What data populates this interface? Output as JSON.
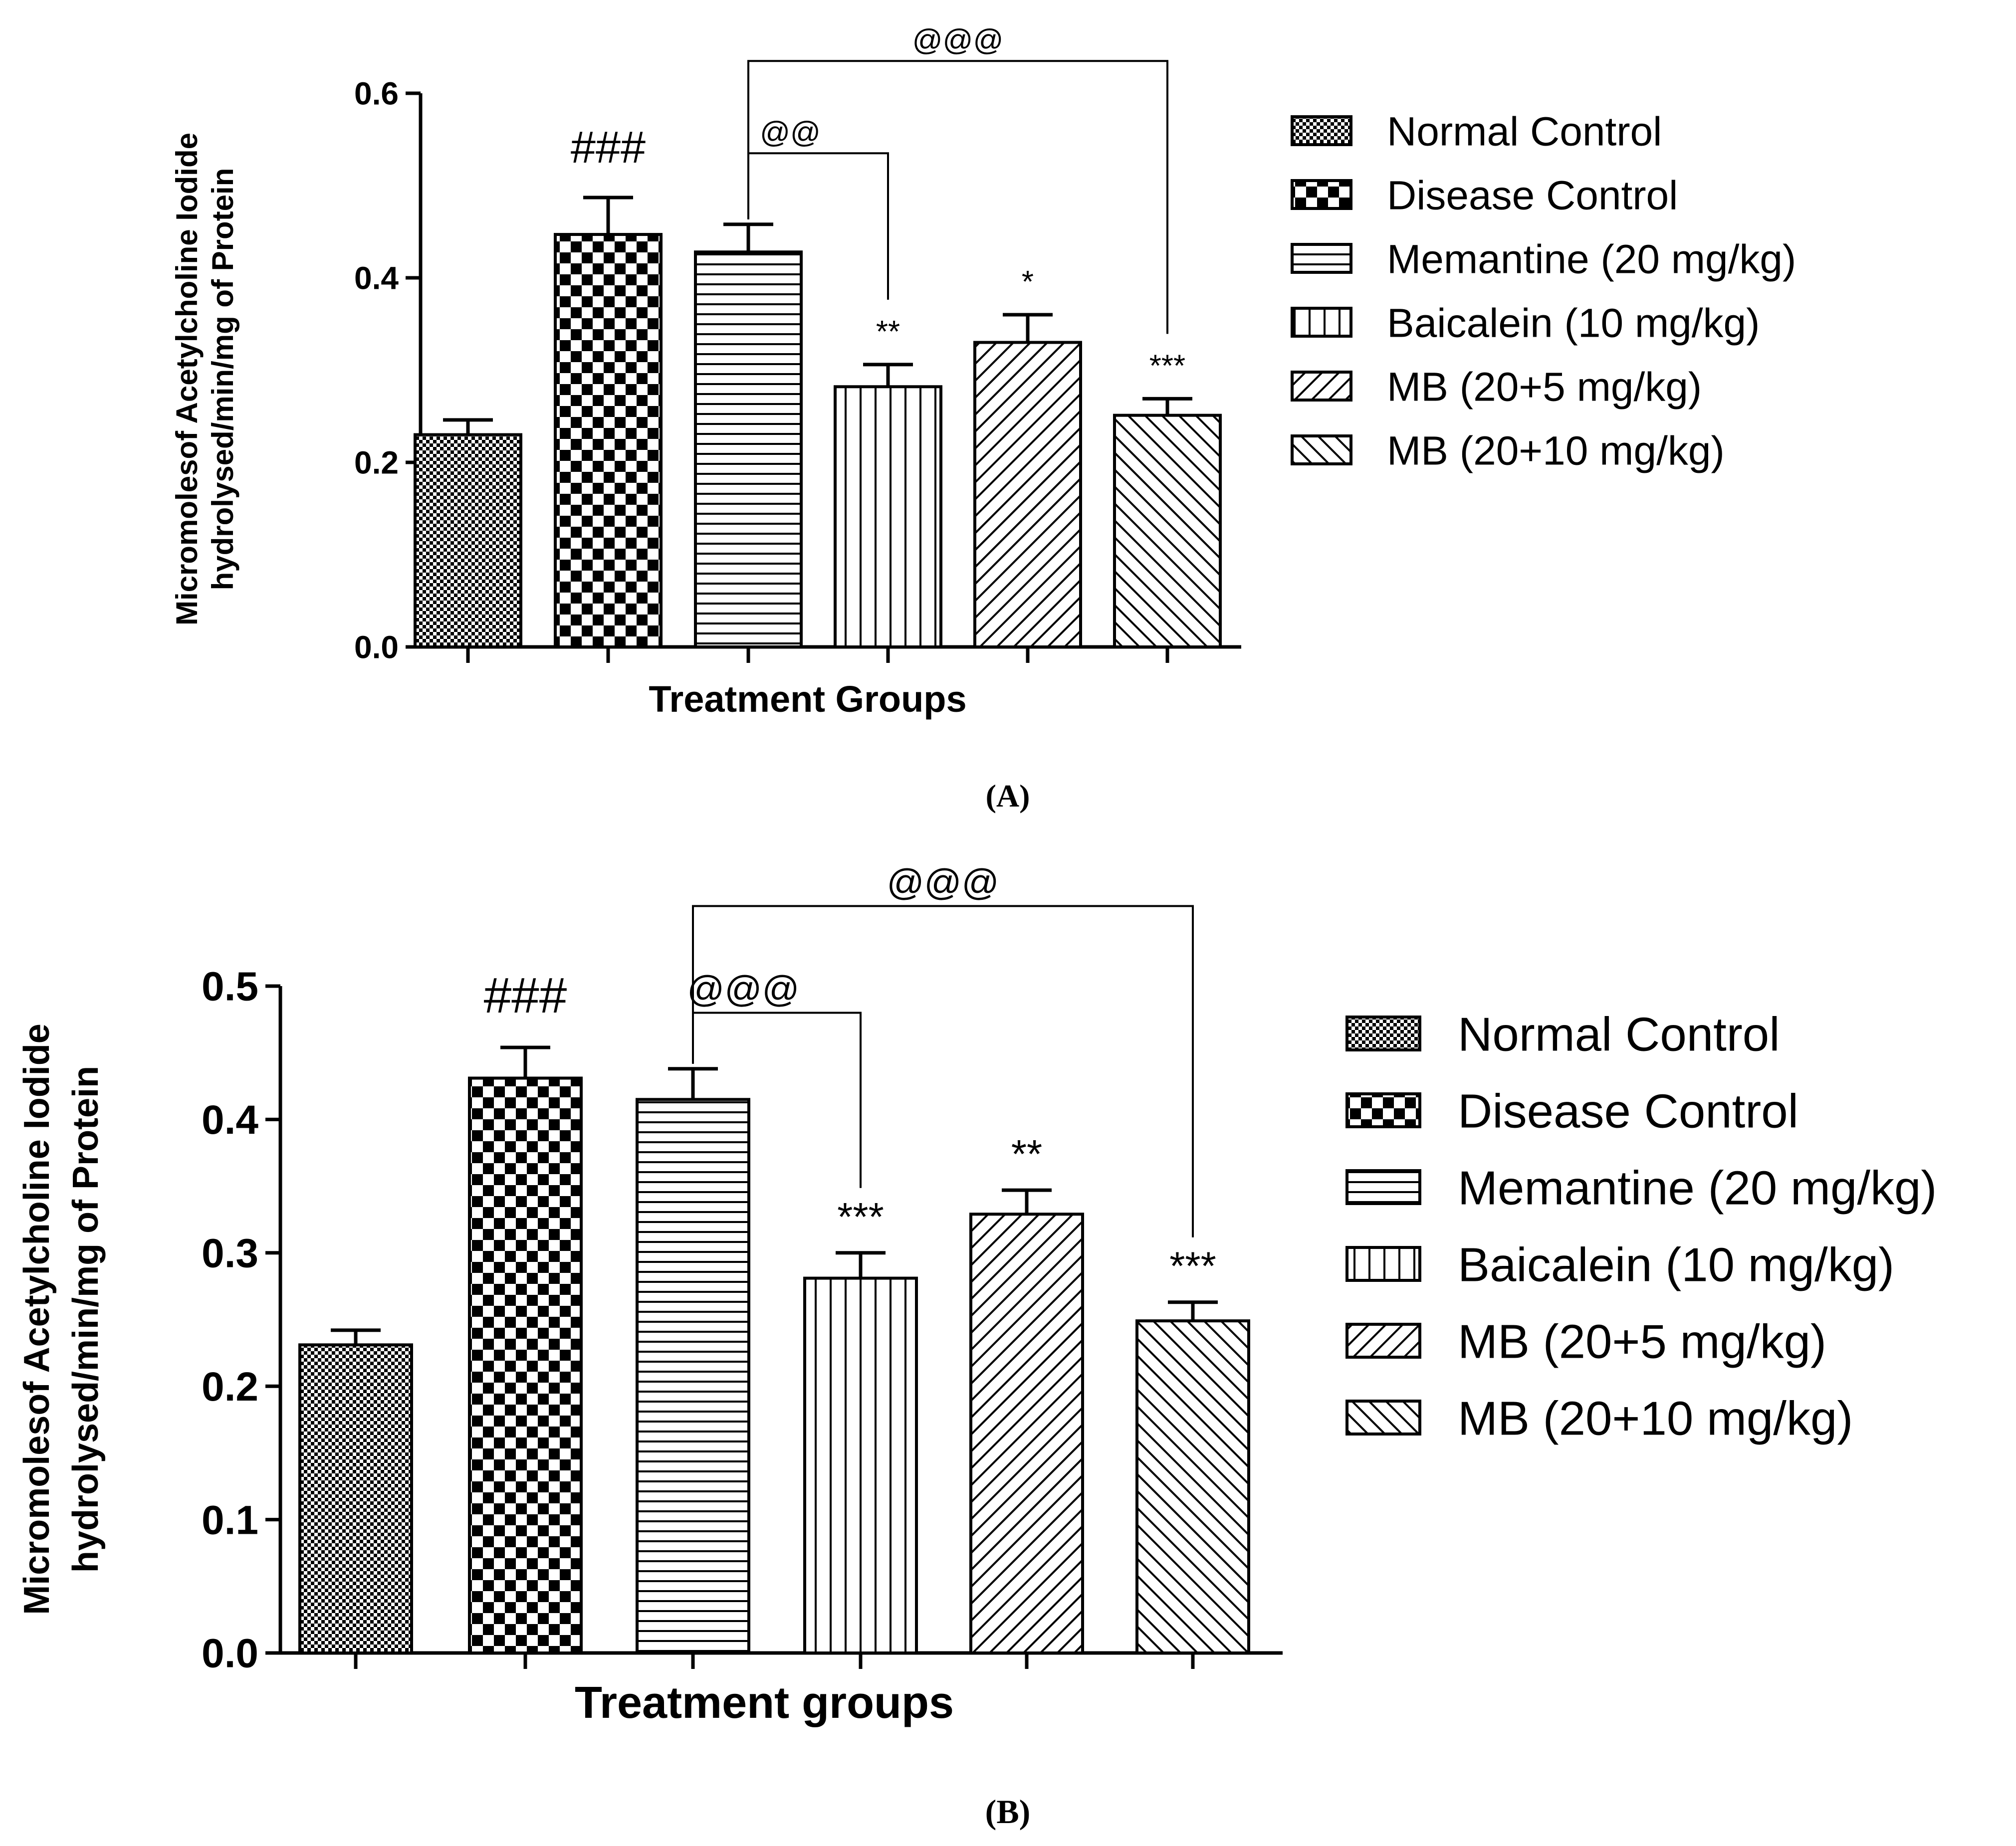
{
  "colors": {
    "ink": "#000000",
    "background": "#ffffff"
  },
  "legend_entries": [
    "Normal Control",
    "Disease Control",
    "Memantine (20 mg/kg)",
    "Baicalein (10 mg/kg)",
    "MB (20+5 mg/kg)",
    "MB (20+10 mg/kg)"
  ],
  "chart_data": [
    {
      "type": "bar",
      "caption": "(A)",
      "categories": [
        "Normal Control",
        "Disease Control",
        "Memantine (20 mg/kg)",
        "Baicalein (10 mg/kg)",
        "MB (20+5 mg/kg)",
        "MB (20+10 mg/kg)"
      ],
      "values": [
        0.23,
        0.447,
        0.428,
        0.282,
        0.33,
        0.251
      ],
      "errors": [
        0.016,
        0.04,
        0.03,
        0.024,
        0.03,
        0.018
      ],
      "patterns": [
        "fine-check",
        "checker",
        "horizontal",
        "vertical",
        "diag-up",
        "diag-down"
      ],
      "significance": [
        "",
        "###",
        "",
        "**",
        "*",
        "***"
      ],
      "brackets": [
        {
          "from": 2,
          "to": 3,
          "label": "@@",
          "level": 0.535
        },
        {
          "from": 2,
          "to": 5,
          "label": "@@@",
          "level": 0.635
        }
      ],
      "xlabel": "Treatment Groups",
      "ylabel_lines": [
        "Micromolesof Acetylcholine Iodide",
        "hydrolysed/min/mg of Protein"
      ],
      "ylim": [
        0,
        0.6
      ],
      "yticks": [
        0.0,
        0.2,
        0.4,
        0.6
      ],
      "ytick_labels": [
        "0.0",
        "0.2",
        "0.4",
        "0.6"
      ],
      "legend_position": "right"
    },
    {
      "type": "bar",
      "caption": "(B)",
      "categories": [
        "Normal Control",
        "Disease Control",
        "Memantine (20 mg/kg)",
        "Baicalein (10 mg/kg)",
        "MB (20+5 mg/kg)",
        "MB (20+10 mg/kg)"
      ],
      "values": [
        0.231,
        0.431,
        0.415,
        0.281,
        0.329,
        0.249
      ],
      "errors": [
        0.011,
        0.023,
        0.023,
        0.019,
        0.018,
        0.014
      ],
      "patterns": [
        "fine-check",
        "checker",
        "horizontal",
        "vertical",
        "diag-up",
        "diag-down"
      ],
      "significance": [
        "",
        "###",
        "",
        "***",
        "**",
        "***"
      ],
      "brackets": [
        {
          "from": 2,
          "to": 3,
          "label": "@@@",
          "level": 0.48
        },
        {
          "from": 2,
          "to": 5,
          "label": "@@@",
          "level": 0.56
        }
      ],
      "xlabel": "Treatment groups",
      "ylabel_lines": [
        "Micromolesof Acetylcholine Iodide",
        "hydrolysed/min/mg of Protein"
      ],
      "ylim": [
        0,
        0.5
      ],
      "yticks": [
        0.0,
        0.1,
        0.2,
        0.3,
        0.4,
        0.5
      ],
      "ytick_labels": [
        "0.0",
        "0.1",
        "0.2",
        "0.3",
        "0.4",
        "0.5"
      ],
      "legend_position": "right"
    }
  ]
}
